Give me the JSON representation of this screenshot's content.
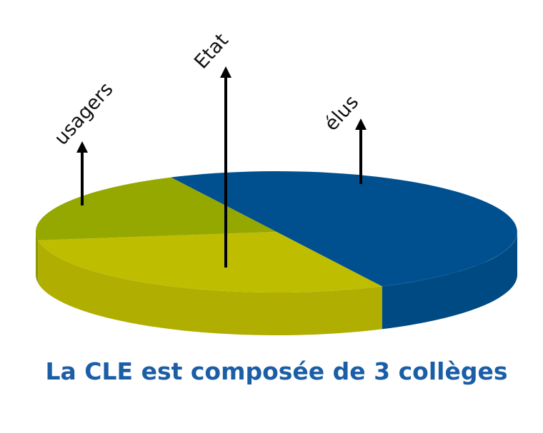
{
  "chart_data": {
    "type": "pie",
    "title": "La CLE est composée de 3 collèges",
    "categories": [
      "élus",
      "Etat",
      "usagers"
    ],
    "values": [
      50,
      30,
      20
    ],
    "colors": [
      "#00508f",
      "#bfbd00",
      "#94a800"
    ]
  }
}
